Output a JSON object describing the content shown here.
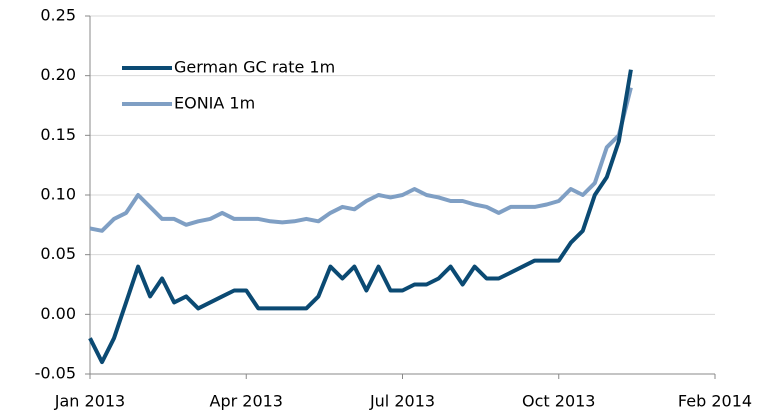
{
  "chart_data": {
    "type": "line",
    "categories": [
      "Jan 2013",
      null,
      null,
      null,
      null,
      null,
      null,
      null,
      null,
      null,
      null,
      null,
      null,
      "Apr 2013",
      null,
      null,
      null,
      null,
      null,
      null,
      null,
      null,
      null,
      null,
      null,
      null,
      "Jul 2013",
      null,
      null,
      null,
      null,
      null,
      null,
      null,
      null,
      null,
      null,
      null,
      null,
      "Oct 2013",
      null,
      null,
      null,
      null,
      null,
      null,
      null,
      null,
      null,
      null,
      null,
      null,
      "Feb 2014"
    ],
    "series": [
      {
        "name": "German GC rate 1m",
        "color": "#0b4a73",
        "values": [
          -0.02,
          -0.04,
          -0.02,
          0.01,
          0.04,
          0.015,
          0.03,
          0.01,
          0.015,
          0.005,
          0.01,
          0.015,
          0.02,
          0.02,
          0.005,
          0.005,
          0.005,
          0.005,
          0.005,
          0.015,
          0.04,
          0.03,
          0.04,
          0.02,
          0.04,
          0.02,
          0.02,
          0.025,
          0.025,
          0.03,
          0.04,
          0.025,
          0.04,
          0.03,
          0.03,
          0.035,
          0.04,
          0.045,
          0.045,
          0.045,
          0.06,
          0.07,
          0.1,
          0.115,
          0.145,
          0.205,
          null,
          null,
          null,
          null,
          null,
          null,
          null
        ]
      },
      {
        "name": "EONIA 1m",
        "color": "#7f9fc4",
        "values": [
          0.072,
          0.07,
          0.08,
          0.085,
          0.1,
          0.09,
          0.08,
          0.08,
          0.075,
          0.078,
          0.08,
          0.085,
          0.08,
          0.08,
          0.08,
          0.078,
          0.077,
          0.078,
          0.08,
          0.078,
          0.085,
          0.09,
          0.088,
          0.095,
          0.1,
          0.098,
          0.1,
          0.105,
          0.1,
          0.098,
          0.095,
          0.095,
          0.092,
          0.09,
          0.085,
          0.09,
          0.09,
          0.09,
          0.092,
          0.095,
          0.105,
          0.1,
          0.11,
          0.14,
          0.15,
          0.19,
          null,
          null,
          null,
          null,
          null,
          null,
          null
        ]
      }
    ],
    "ylim": [
      -0.05,
      0.25
    ],
    "yticks": [
      -0.05,
      {
        "value": 0,
        "label": "0.00"
      },
      0.05,
      {
        "value": 0.1,
        "label": "0.10"
      },
      0.15,
      {
        "value": 0.2,
        "label": "0.20"
      },
      0.25
    ],
    "grid": true,
    "legend": "upper left"
  }
}
